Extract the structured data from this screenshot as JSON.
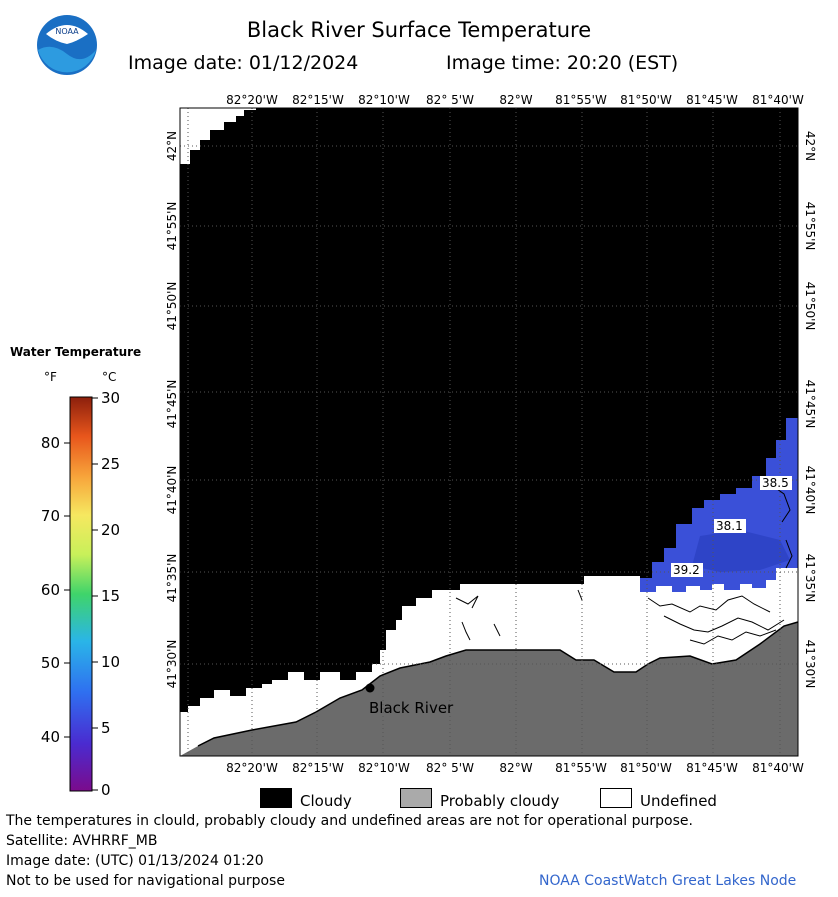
{
  "header": {
    "title": "Black River Surface Temperature",
    "image_date_label": "Image date: 01/12/2024",
    "image_time_label": "Image time: 20:20 (EST)",
    "logo_text": "NOAA"
  },
  "map": {
    "longitude_ticks": [
      "82°20'W",
      "82°15'W",
      "82°10'W",
      "82° 5'W",
      "82°W",
      "81°55'W",
      "81°50'W",
      "81°45'W",
      "81°40'W"
    ],
    "latitude_ticks": [
      "42°N",
      "41°55'N",
      "41°50'N",
      "41°45'N",
      "41°40'N",
      "41°35'N",
      "41°30'N"
    ],
    "location_label": "Black River",
    "isotherm_labels": [
      "38.5",
      "38.1",
      "39.2"
    ],
    "colors": {
      "cloudy": "#000000",
      "probably_cloudy": "#6b6b6b",
      "undefined": "#ffffff",
      "water_cold": "#3a50d8",
      "land": "#6b6b6b"
    }
  },
  "legend": {
    "title": "Water Temperature",
    "unit_f": "°F",
    "unit_c": "°C",
    "f_labels": [
      "80",
      "70",
      "60",
      "50",
      "40"
    ],
    "c_labels": [
      "30",
      "25",
      "20",
      "15",
      "10",
      "5",
      "0"
    ],
    "range_c": [
      0,
      30
    ]
  },
  "key": {
    "cloudy": "Cloudy",
    "probably_cloudy": "Probably cloudy",
    "undefined": "Undefined"
  },
  "footer": {
    "disclaimer": "The temperatures in clould, probably cloudy and undefined areas are not for operational purpose.",
    "satellite": "Satellite: AVHRRF_MB",
    "utc_date": "Image date: (UTC) 01/13/2024  01:20",
    "nav_warning": "Not to be used for navigational purpose",
    "credit": "NOAA CoastWatch Great Lakes Node"
  }
}
